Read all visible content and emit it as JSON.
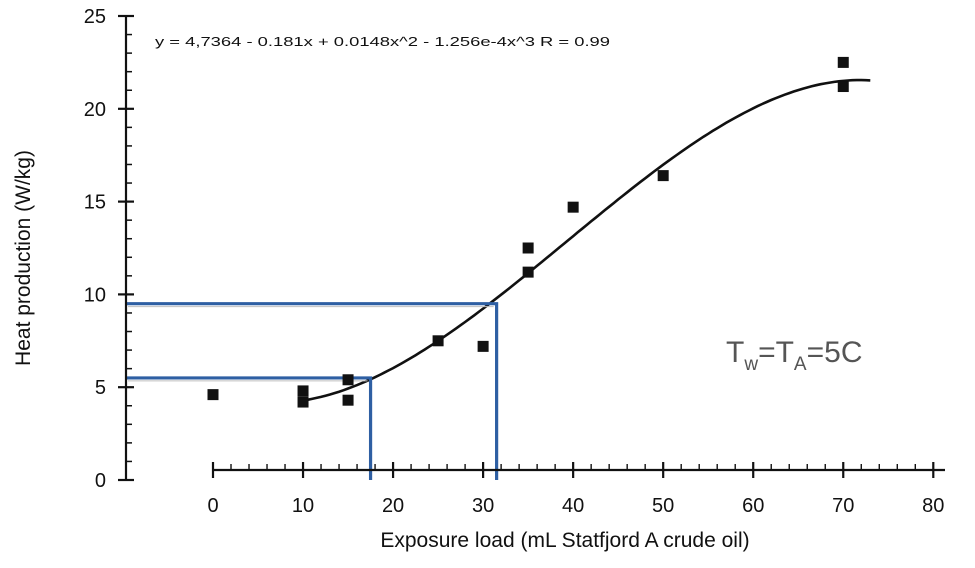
{
  "chart_data": {
    "type": "scatter",
    "title": "",
    "equation": "y = 4,7364 - 0.181x + 0.0148x^2 - 1.256e-4x^3   R = 0.99",
    "xlabel": "Exposure load  (mL Statfjord A crude oil)",
    "ylabel": "Heat production (W/kg)",
    "xlim": [
      0,
      80
    ],
    "ylim": [
      0,
      25
    ],
    "x_ticks": [
      "0",
      "10",
      "20",
      "30",
      "40",
      "50",
      "60",
      "70",
      "80"
    ],
    "y_ticks": [
      "0",
      "5",
      "10",
      "15",
      "20",
      "25"
    ],
    "grid": false,
    "legend": "none",
    "annotation": {
      "T": "T",
      "w": "w",
      "eq": "=T",
      "A": "A",
      "rest": "=5C"
    },
    "marker_color": "#111111",
    "guide_color": "#2e5fa3",
    "points": [
      {
        "x": 0,
        "y": 4.6
      },
      {
        "x": 10,
        "y": 4.8
      },
      {
        "x": 10,
        "y": 4.2
      },
      {
        "x": 15,
        "y": 5.4
      },
      {
        "x": 15,
        "y": 4.3
      },
      {
        "x": 25,
        "y": 7.5
      },
      {
        "x": 30,
        "y": 7.2
      },
      {
        "x": 35,
        "y": 12.5
      },
      {
        "x": 35,
        "y": 11.2
      },
      {
        "x": 40,
        "y": 14.7
      },
      {
        "x": 50,
        "y": 16.4
      },
      {
        "x": 70,
        "y": 22.5
      },
      {
        "x": 70,
        "y": 21.2
      }
    ],
    "fit": {
      "type": "cubic",
      "x_range": [
        10,
        73
      ],
      "coefficients": [
        4.7364,
        -0.181,
        0.0148,
        -0.0001256
      ]
    },
    "reference_lines": [
      {
        "x": 17.5,
        "y": 5.5
      },
      {
        "x": 31.5,
        "y": 9.5
      }
    ]
  }
}
